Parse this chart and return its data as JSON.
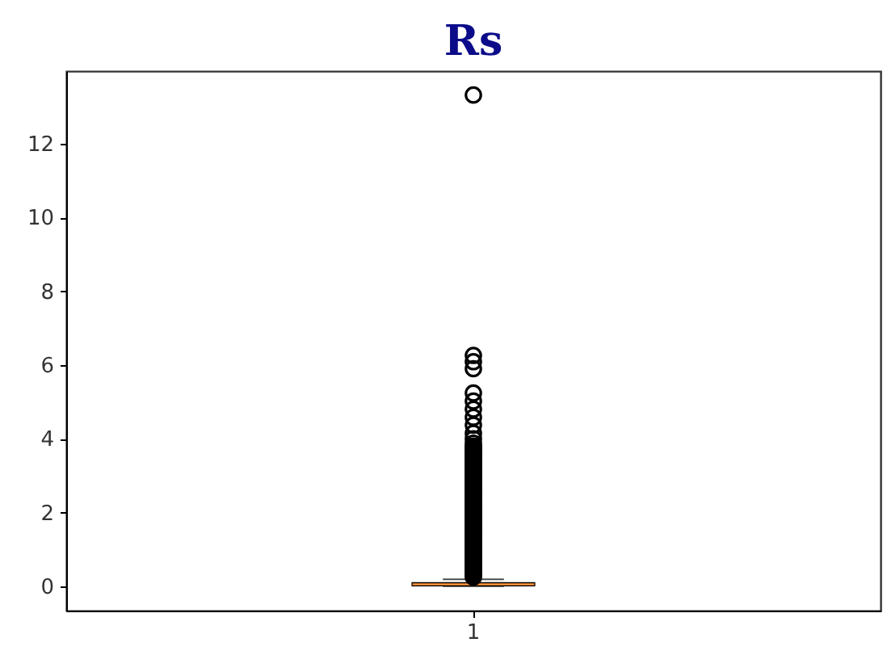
{
  "chart_data": {
    "type": "box",
    "title": "Rs",
    "categories": [
      "1"
    ],
    "boxes": [
      {
        "low": 0,
        "q1": 0.02,
        "median": 0.05,
        "q3": 0.09,
        "high": 0.19,
        "outliers": [
          0.25,
          0.3,
          0.35,
          0.4,
          0.45,
          0.5,
          0.55,
          0.6,
          0.65,
          0.7,
          0.75,
          0.8,
          0.85,
          0.9,
          0.95,
          1.0,
          1.05,
          1.1,
          1.15,
          1.2,
          1.25,
          1.3,
          1.35,
          1.4,
          1.45,
          1.5,
          1.55,
          1.6,
          1.65,
          1.7,
          1.75,
          1.8,
          1.85,
          1.9,
          1.95,
          2.0,
          2.05,
          2.1,
          2.15,
          2.2,
          2.25,
          2.3,
          2.35,
          2.4,
          2.45,
          2.5,
          2.55,
          2.6,
          2.65,
          2.7,
          2.75,
          2.8,
          2.85,
          2.9,
          2.95,
          3.0,
          3.05,
          3.1,
          3.15,
          3.2,
          3.25,
          3.3,
          3.35,
          3.4,
          3.45,
          3.5,
          3.55,
          3.6,
          3.65,
          3.7,
          3.75,
          3.8,
          3.88,
          4.0,
          4.15,
          4.37,
          4.58,
          4.8,
          5.02,
          5.24,
          5.9,
          6.09,
          6.26,
          13.32
        ]
      }
    ],
    "ylim": [
      -0.66,
      13.97
    ],
    "yticks": [
      0,
      2,
      4,
      6,
      8,
      10,
      12
    ]
  }
}
